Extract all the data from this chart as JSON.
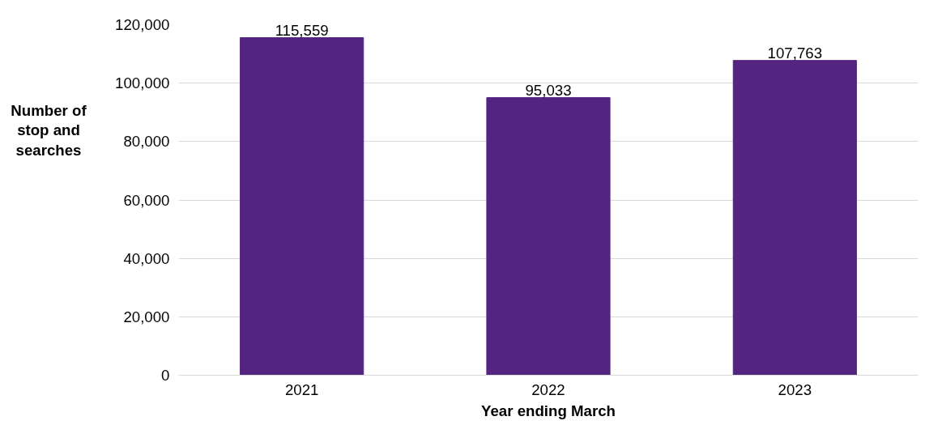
{
  "chart_data": {
    "type": "bar",
    "xlabel": "Year ending March",
    "ylabel": "Number of stop and searches",
    "categories": [
      "2021",
      "2022",
      "2023"
    ],
    "values": [
      115559,
      95033,
      107763
    ],
    "value_labels": [
      "115,559",
      "95,033",
      "107,763"
    ],
    "color": "#532580",
    "ylim": [
      0,
      120000
    ],
    "yticks": [
      {
        "value": 0,
        "label": "0"
      },
      {
        "value": 20000,
        "label": "20,000"
      },
      {
        "value": 40000,
        "label": "40,000"
      },
      {
        "value": 60000,
        "label": "60,000"
      },
      {
        "value": 80000,
        "label": "80,000"
      },
      {
        "value": 100000,
        "label": "100,000"
      },
      {
        "value": 120000,
        "label": "120,000"
      }
    ],
    "grid": "y"
  }
}
